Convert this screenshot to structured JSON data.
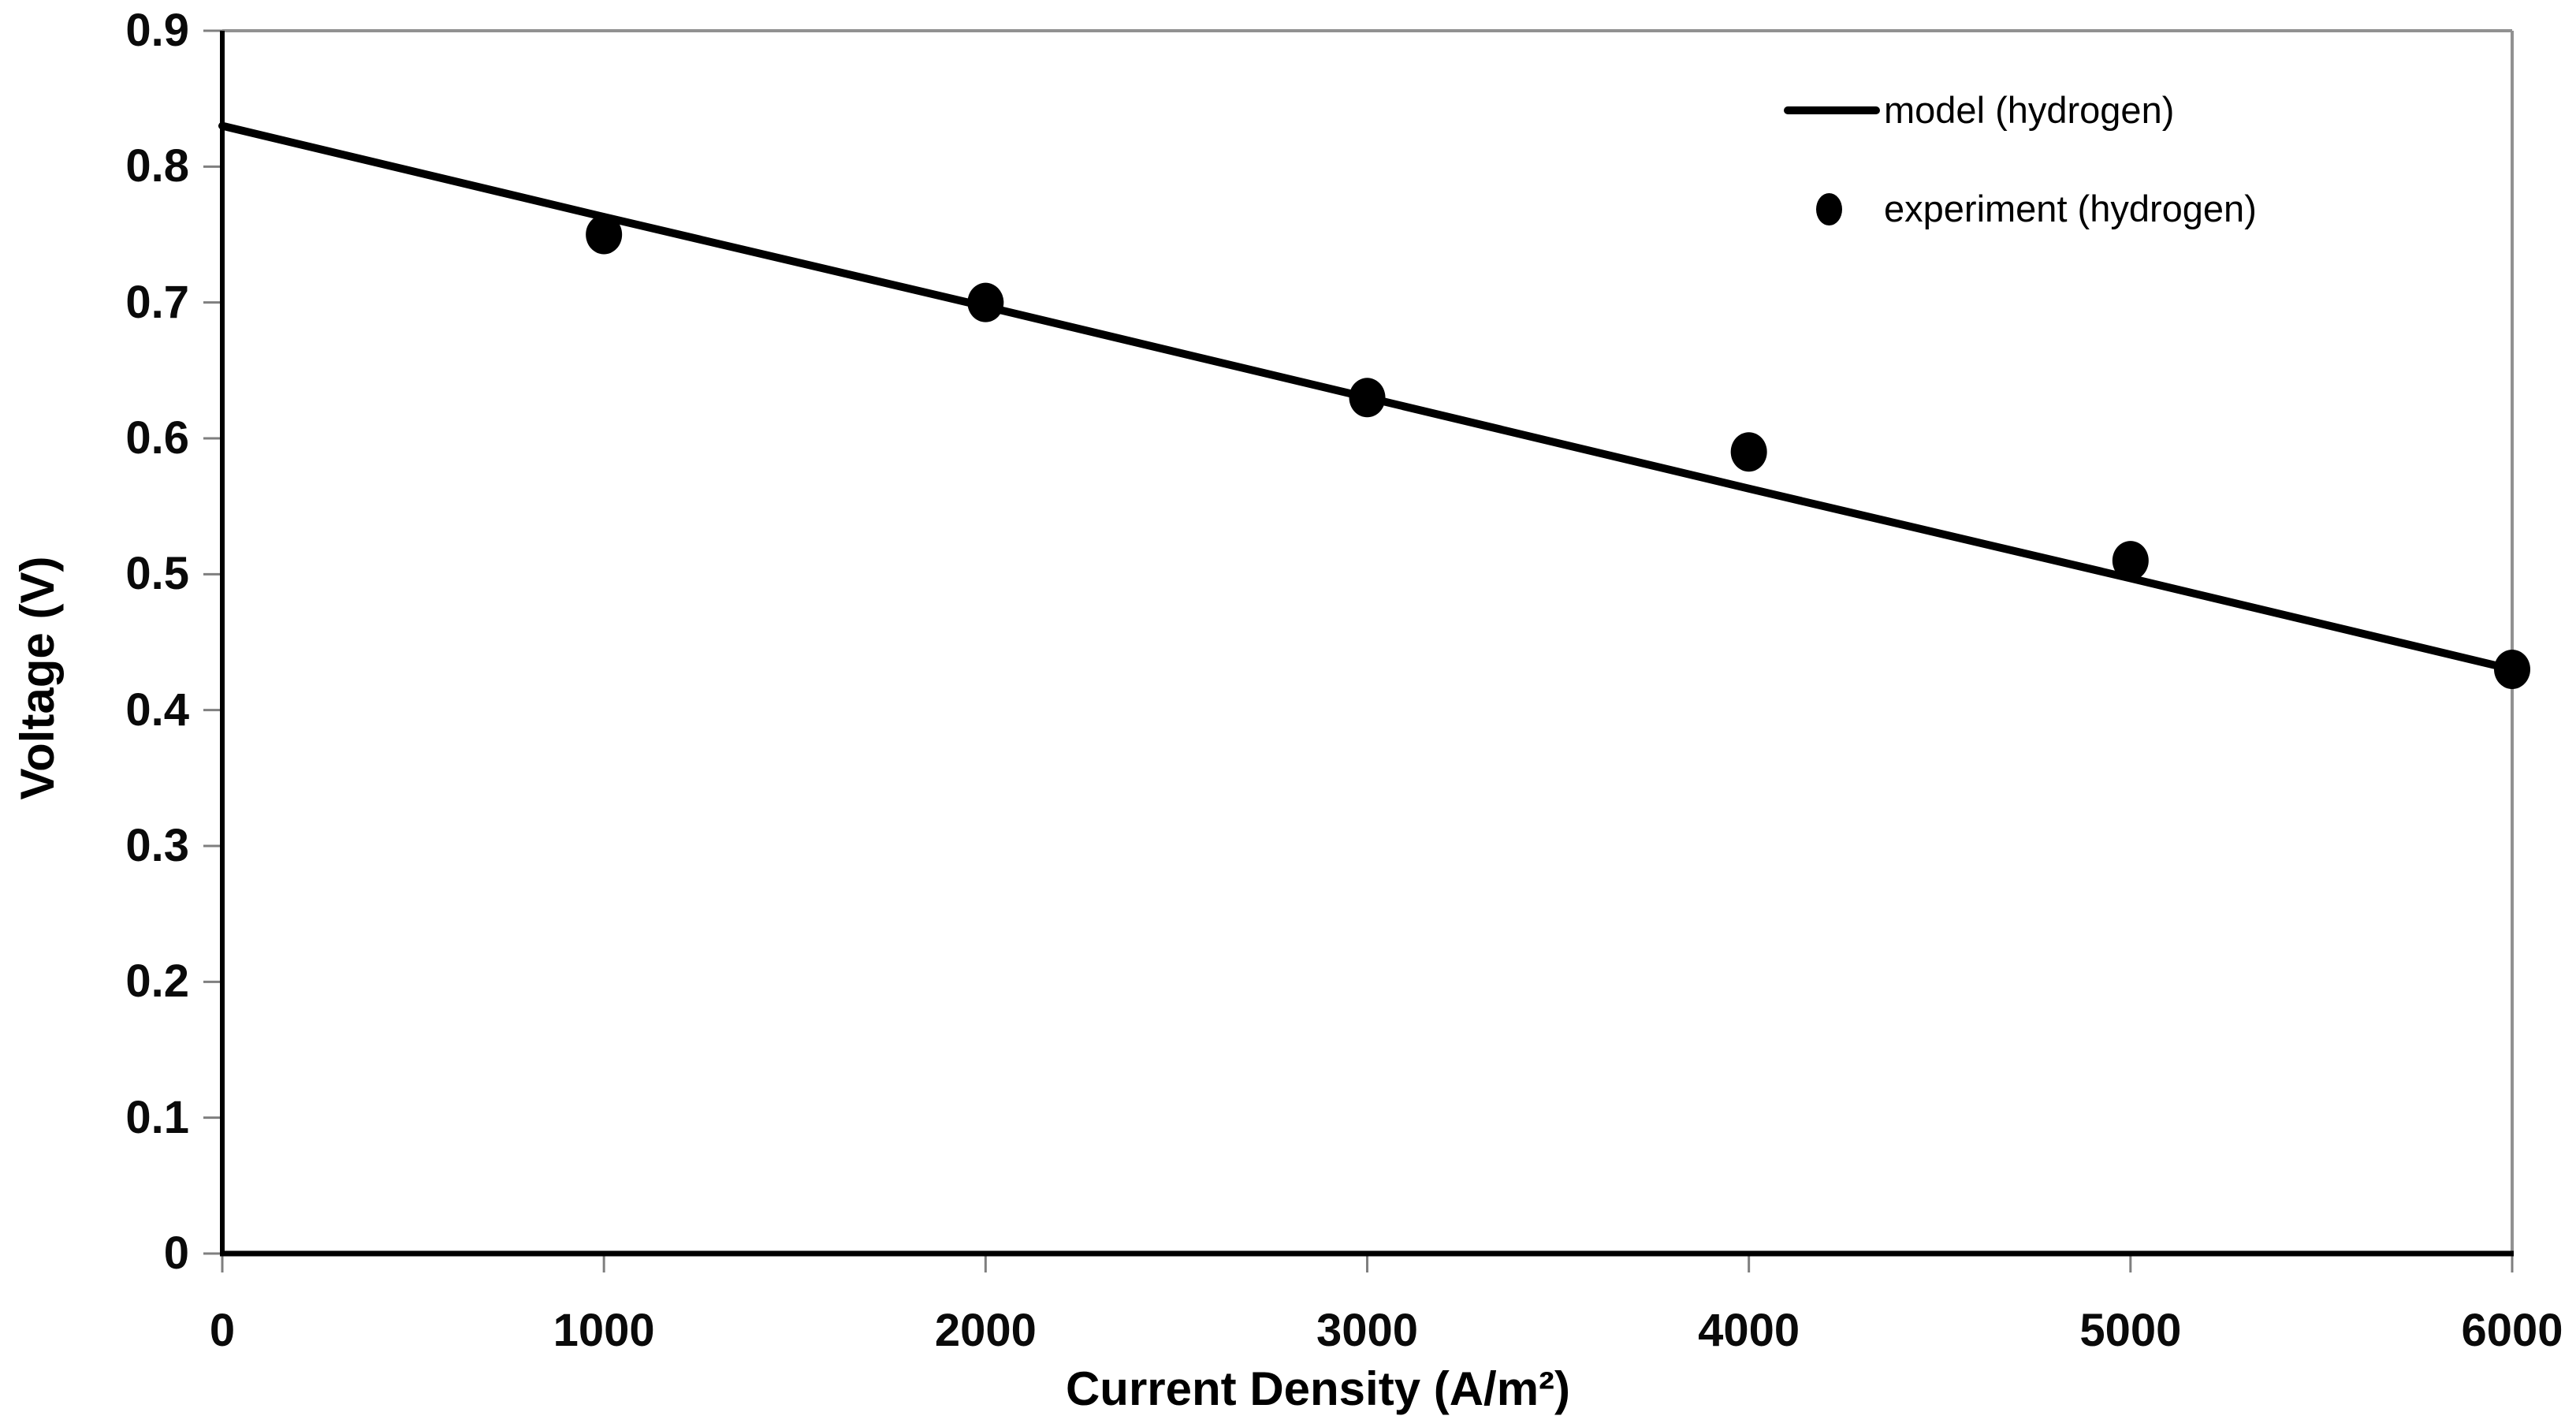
{
  "figure": {
    "background": "#ffffff",
    "plot_border_color": "#919191",
    "axis_color": "#000000",
    "tick_color": "#7f7f7f",
    "text_color": "#0a0a0a"
  },
  "chart_data": {
    "type": "line+scatter",
    "title": "",
    "xlabel": "Current Density (A/m²)",
    "ylabel": "Voltage (V)",
    "xlim": [
      0,
      6000
    ],
    "ylim": [
      0,
      0.9
    ],
    "x_ticks": [
      0,
      1000,
      2000,
      3000,
      4000,
      5000,
      6000
    ],
    "x_tick_labels": [
      "0",
      "1000",
      "2000",
      "3000",
      "4000",
      "5000",
      "6000"
    ],
    "y_ticks": [
      0,
      0.1,
      0.2,
      0.3,
      0.4,
      0.5,
      0.6,
      0.7,
      0.8,
      0.9
    ],
    "y_tick_labels": [
      "0",
      "0.1",
      "0.2",
      "0.3",
      "0.4",
      "0.5",
      "0.6",
      "0.7",
      "0.8",
      "0.9"
    ],
    "grid": false,
    "legend_position": "top-right-inside",
    "series": [
      {
        "name": "model (hydrogen)",
        "type": "line",
        "color": "#000000",
        "line_width": 10,
        "x": [
          0,
          1000,
          2000,
          3000,
          4000,
          5000,
          6000
        ],
        "y": [
          0.83,
          0.763,
          0.697,
          0.63,
          0.563,
          0.497,
          0.43
        ]
      },
      {
        "name": "experiment (hydrogen)",
        "type": "scatter",
        "color": "#000000",
        "marker": "filled-circle",
        "x": [
          1000,
          2000,
          3000,
          4000,
          5000,
          6000
        ],
        "y": [
          0.75,
          0.7,
          0.63,
          0.59,
          0.51,
          0.43
        ]
      }
    ]
  },
  "legend": {
    "items": [
      {
        "label": "model (hydrogen)",
        "marker": "line"
      },
      {
        "label": "experiment (hydrogen)",
        "marker": "dot"
      }
    ]
  }
}
